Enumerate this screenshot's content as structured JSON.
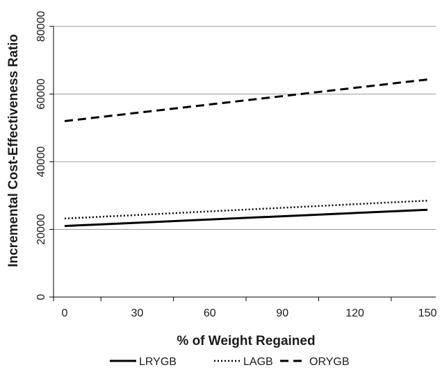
{
  "chart_data": {
    "type": "line",
    "title": "",
    "xlabel": "% of Weight Regained",
    "ylabel": "Incremental Cost-Effectiveness Ratio",
    "xlim": [
      0,
      150
    ],
    "ylim": [
      0,
      80000
    ],
    "xticks": [
      0,
      30,
      60,
      90,
      120,
      150
    ],
    "yticks": [
      0,
      20000,
      40000,
      60000,
      80000
    ],
    "grid": "horizontal",
    "legend_position": "bottom",
    "series": [
      {
        "name": "LRYGB",
        "style": "solid",
        "color": "#000000",
        "x": [
          0,
          150
        ],
        "y": [
          21000,
          25800
        ]
      },
      {
        "name": "LAGB",
        "style": "dotted",
        "color": "#000000",
        "x": [
          0,
          150
        ],
        "y": [
          23200,
          28500
        ]
      },
      {
        "name": "ORYGB",
        "style": "dashed",
        "color": "#000000",
        "x": [
          0,
          150
        ],
        "y": [
          52000,
          64300
        ]
      }
    ]
  }
}
